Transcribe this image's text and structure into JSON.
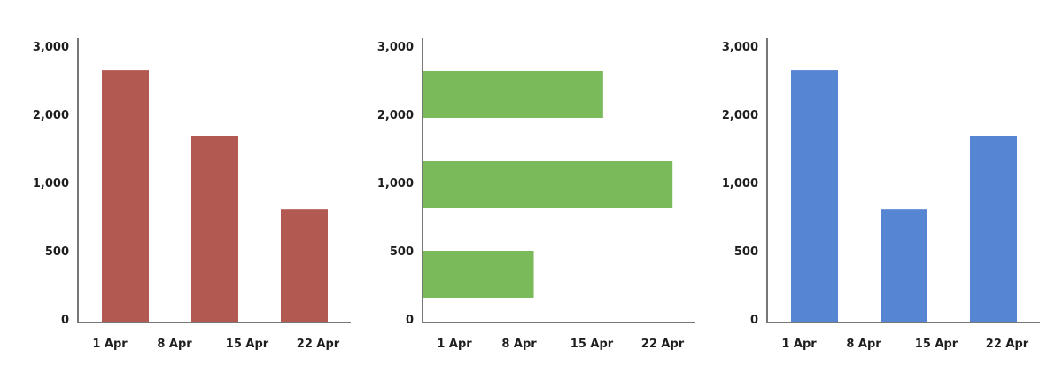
{
  "chart_data": [
    {
      "type": "bar",
      "orientation": "vertical",
      "color": "#b25a51",
      "y_tick_labels": [
        "0",
        "500",
        "1,000",
        "2,000",
        "3,000"
      ],
      "x_tick_labels": [
        "1 Apr",
        "8 Apr",
        "15 Apr",
        "22 Apr"
      ],
      "values": [
        2700,
        1730,
        830
      ],
      "grid": false
    },
    {
      "type": "bar",
      "orientation": "horizontal",
      "color": "#7aba5b",
      "y_tick_labels": [
        "0",
        "500",
        "1,000",
        "2,000",
        "3,000"
      ],
      "x_tick_labels": [
        "1 Apr",
        "8 Apr",
        "15 Apr",
        "22 Apr"
      ],
      "values": [
        "16 Apr",
        "23 Apr",
        "9 Apr"
      ],
      "grid": false
    },
    {
      "type": "bar",
      "orientation": "vertical",
      "color": "#5585d3",
      "y_tick_labels": [
        "0",
        "500",
        "1,000",
        "2,000",
        "3,000"
      ],
      "x_tick_labels": [
        "1 Apr",
        "8 Apr",
        "15 Apr",
        "22 Apr"
      ],
      "values": [
        2700,
        830,
        1730
      ],
      "grid": false
    }
  ]
}
